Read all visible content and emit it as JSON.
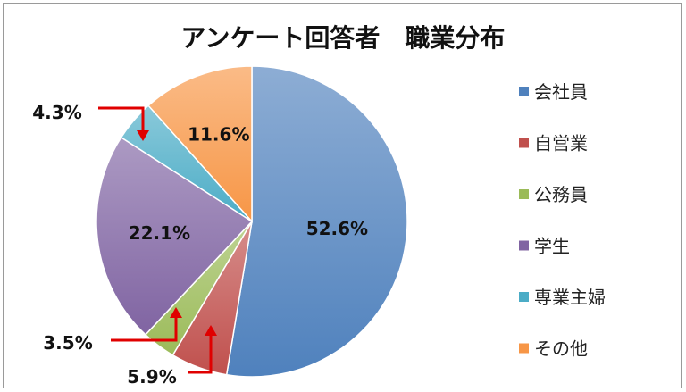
{
  "chart_data": {
    "type": "pie",
    "title": "アンケート回答者　職業分布",
    "categories": [
      "会社員",
      "自営業",
      "公務員",
      "学生",
      "専業主婦",
      "その他"
    ],
    "values": [
      52.6,
      5.9,
      3.5,
      22.1,
      4.3,
      11.6
    ],
    "data_labels": [
      "52.6%",
      "5.9%",
      "3.5%",
      "22.1%",
      "4.3%",
      "11.6%"
    ],
    "colors": [
      "#4f81bd",
      "#c0504d",
      "#9bbb59",
      "#8064a2",
      "#4bacc6",
      "#f79646"
    ],
    "legend_position": "right",
    "callout_color": "#e00000"
  }
}
